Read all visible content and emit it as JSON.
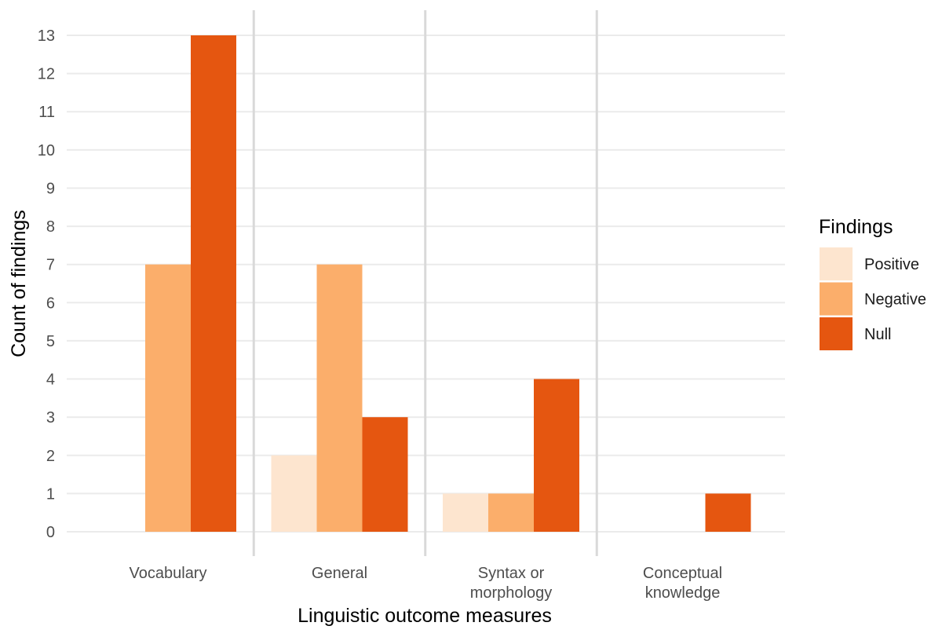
{
  "chart_data": {
    "type": "bar",
    "xlabel": "Linguistic outcome measures",
    "ylabel": "Count of findings",
    "ylim": [
      0,
      13
    ],
    "yticks": [
      0,
      1,
      2,
      3,
      4,
      5,
      6,
      7,
      8,
      9,
      10,
      11,
      12,
      13
    ],
    "grid": "horizontal",
    "legend": {
      "title": "Findings",
      "placement": "right"
    },
    "categories": [
      {
        "lines": [
          "Vocabulary"
        ]
      },
      {
        "lines": [
          "General"
        ]
      },
      {
        "lines": [
          "Syntax or",
          "morphology"
        ]
      },
      {
        "lines": [
          "Conceptual",
          "knowledge"
        ]
      }
    ],
    "series": [
      {
        "name": "Positive",
        "color": "#FDE5CF",
        "values": [
          0,
          2,
          1,
          0
        ]
      },
      {
        "name": "Negative",
        "color": "#FBAE6B",
        "values": [
          7,
          7,
          1,
          0
        ]
      },
      {
        "name": "Null",
        "color": "#E55610",
        "values": [
          13,
          3,
          4,
          1
        ]
      }
    ],
    "separator_color": "#d9d9d9",
    "grid_color": "#ebebeb"
  }
}
